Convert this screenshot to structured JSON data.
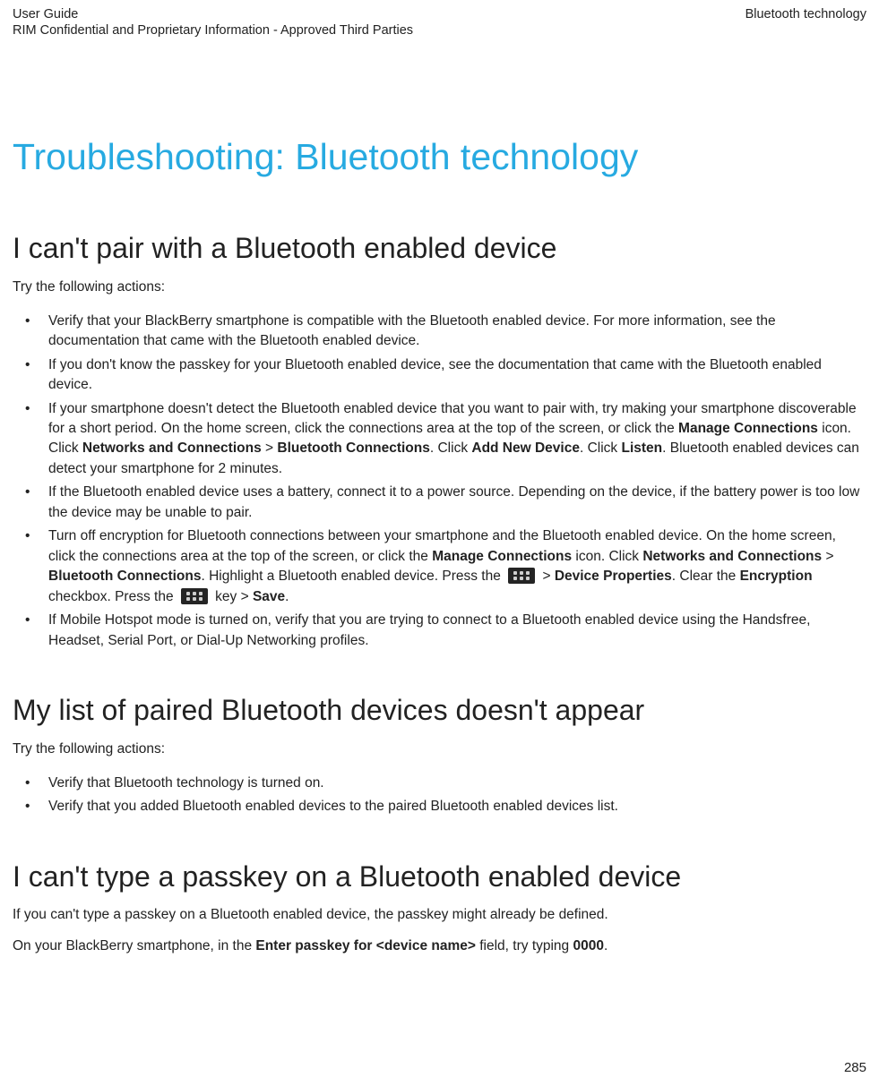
{
  "header": {
    "left_top": "User Guide",
    "left_bottom": "RIM Confidential and Proprietary Information - Approved Third Parties",
    "right": "Bluetooth technology"
  },
  "title": "Troubleshooting: Bluetooth technology",
  "section1": {
    "heading": "I can't pair with a Bluetooth enabled device",
    "intro": "Try the following actions:",
    "bullets": {
      "b1": "Verify that your BlackBerry smartphone is compatible with the Bluetooth enabled device. For more information, see the documentation that came with the Bluetooth enabled device.",
      "b2": "If you don't know the passkey for your Bluetooth enabled device, see the documentation that came with the Bluetooth enabled device.",
      "b3_a": "If your smartphone doesn't detect the Bluetooth enabled device that you want to pair with, try making your smartphone discoverable for a short period. On the home screen, click the connections area at the top of the screen, or click the ",
      "b3_mc": "Manage Connections",
      "b3_b": " icon. Click ",
      "b3_nc": "Networks and Connections",
      "b3_gt1": " > ",
      "b3_bc": "Bluetooth Connections",
      "b3_c": ". Click ",
      "b3_and": "Add New Device",
      "b3_d": ". Click ",
      "b3_listen": "Listen",
      "b3_e": ". Bluetooth enabled devices can detect your smartphone for 2 minutes.",
      "b4": "If the Bluetooth enabled device uses a battery, connect it to a power source. Depending on the device, if the battery power is too low the device may be unable to pair.",
      "b5_a": "Turn off encryption for Bluetooth connections between your smartphone and the Bluetooth enabled device. On the home screen, click the connections area at the top of the screen, or click the ",
      "b5_mc": "Manage Connections",
      "b5_b": " icon. Click ",
      "b5_nc": "Networks and Connections",
      "b5_gt1": " > ",
      "b5_bc": "Bluetooth Connections",
      "b5_c": ". Highlight a Bluetooth enabled device. Press the ",
      "b5_gt2": " > ",
      "b5_dp": "Device Properties",
      "b5_d": ". Clear the ",
      "b5_enc": "Encryption",
      "b5_e": " checkbox. Press the ",
      "b5_f": " key > ",
      "b5_save": "Save",
      "b5_g": ".",
      "b6": "If Mobile Hotspot mode is turned on, verify that you are trying to connect to a Bluetooth enabled device using the Handsfree, Headset, Serial Port, or Dial-Up Networking profiles."
    }
  },
  "section2": {
    "heading": "My list of paired Bluetooth devices doesn't appear",
    "intro": "Try the following actions:",
    "bullets": {
      "b1": "Verify that Bluetooth technology is turned on.",
      "b2": "Verify that you added Bluetooth enabled devices to the paired Bluetooth enabled devices list."
    }
  },
  "section3": {
    "heading": "I can't type a passkey on a Bluetooth enabled device",
    "p1": "If you can't type a passkey on a Bluetooth enabled device, the passkey might already be defined.",
    "p2_a": "On your BlackBerry smartphone, in the ",
    "p2_field": "Enter passkey for <device name>",
    "p2_b": " field, try typing ",
    "p2_code": "0000",
    "p2_c": "."
  },
  "page_number": "285"
}
